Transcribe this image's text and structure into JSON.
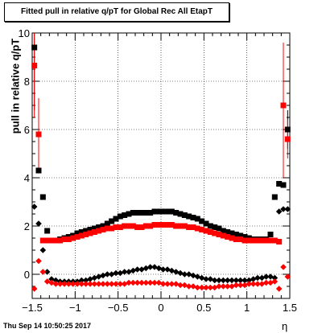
{
  "title": "Fitted pull in relative q/pT for Global Rec All EtapT",
  "footer": "Thu Sep 14 10:50:25 2017",
  "chart_data": {
    "type": "scatter",
    "xlabel": "η",
    "ylabel": "pull in relative q/pT",
    "xlim": [
      -1.5,
      1.5
    ],
    "ylim": [
      -1,
      10
    ],
    "grid": true,
    "xticks": [
      "−1.5",
      "−1",
      "−0.5",
      "0",
      "0.5",
      "1",
      "1.5"
    ],
    "yticks": [
      "0",
      "2",
      "4",
      "6",
      "8",
      "10"
    ],
    "series": [
      {
        "color": "#000000",
        "marker": "square",
        "points": [
          [
            -1.475,
            9.4
          ],
          [
            -1.425,
            4.3
          ],
          [
            -1.375,
            3.2
          ],
          [
            -1.325,
            1.8
          ],
          [
            -1.275,
            1.4
          ],
          [
            -1.225,
            1.4
          ],
          [
            -1.175,
            1.45
          ],
          [
            -1.125,
            1.5
          ],
          [
            -1.075,
            1.55
          ],
          [
            -1.025,
            1.6
          ],
          [
            -0.975,
            1.7
          ],
          [
            -0.925,
            1.75
          ],
          [
            -0.875,
            1.8
          ],
          [
            -0.825,
            1.85
          ],
          [
            -0.775,
            1.9
          ],
          [
            -0.725,
            1.95
          ],
          [
            -0.675,
            2.0
          ],
          [
            -0.625,
            2.1
          ],
          [
            -0.575,
            2.2
          ],
          [
            -0.525,
            2.3
          ],
          [
            -0.475,
            2.4
          ],
          [
            -0.425,
            2.45
          ],
          [
            -0.375,
            2.5
          ],
          [
            -0.325,
            2.55
          ],
          [
            -0.275,
            2.55
          ],
          [
            -0.225,
            2.55
          ],
          [
            -0.175,
            2.55
          ],
          [
            -0.125,
            2.55
          ],
          [
            -0.075,
            2.6
          ],
          [
            -0.025,
            2.6
          ],
          [
            0.025,
            2.6
          ],
          [
            0.075,
            2.6
          ],
          [
            0.125,
            2.6
          ],
          [
            0.175,
            2.55
          ],
          [
            0.225,
            2.5
          ],
          [
            0.275,
            2.45
          ],
          [
            0.325,
            2.4
          ],
          [
            0.375,
            2.35
          ],
          [
            0.425,
            2.3
          ],
          [
            0.475,
            2.2
          ],
          [
            0.525,
            2.1
          ],
          [
            0.575,
            2.0
          ],
          [
            0.625,
            1.95
          ],
          [
            0.675,
            1.9
          ],
          [
            0.725,
            1.8
          ],
          [
            0.775,
            1.75
          ],
          [
            0.825,
            1.7
          ],
          [
            0.875,
            1.65
          ],
          [
            0.925,
            1.6
          ],
          [
            0.975,
            1.55
          ],
          [
            1.025,
            1.5
          ],
          [
            1.075,
            1.45
          ],
          [
            1.125,
            1.45
          ],
          [
            1.175,
            1.45
          ],
          [
            1.225,
            1.45
          ],
          [
            1.275,
            1.65
          ],
          [
            1.325,
            3.2
          ],
          [
            1.375,
            3.75
          ],
          [
            1.425,
            3.7
          ],
          [
            1.475,
            6.0
          ]
        ]
      },
      {
        "color": "#ff0000",
        "marker": "square",
        "points": [
          [
            -1.475,
            8.65
          ],
          [
            -1.425,
            5.8
          ],
          [
            -1.375,
            1.4
          ],
          [
            -1.325,
            1.4
          ],
          [
            -1.275,
            1.4
          ],
          [
            -1.225,
            1.4
          ],
          [
            -1.175,
            1.4
          ],
          [
            -1.125,
            1.45
          ],
          [
            -1.075,
            1.45
          ],
          [
            -1.025,
            1.5
          ],
          [
            -0.975,
            1.55
          ],
          [
            -0.925,
            1.6
          ],
          [
            -0.875,
            1.65
          ],
          [
            -0.825,
            1.7
          ],
          [
            -0.775,
            1.75
          ],
          [
            -0.725,
            1.8
          ],
          [
            -0.675,
            1.85
          ],
          [
            -0.625,
            1.9
          ],
          [
            -0.575,
            1.9
          ],
          [
            -0.525,
            1.95
          ],
          [
            -0.475,
            1.95
          ],
          [
            -0.425,
            2.0
          ],
          [
            -0.375,
            2.0
          ],
          [
            -0.325,
            2.0
          ],
          [
            -0.275,
            1.95
          ],
          [
            -0.225,
            1.95
          ],
          [
            -0.175,
            2.0
          ],
          [
            -0.125,
            2.0
          ],
          [
            -0.075,
            2.05
          ],
          [
            -0.025,
            2.05
          ],
          [
            0.025,
            2.05
          ],
          [
            0.075,
            2.05
          ],
          [
            0.125,
            2.05
          ],
          [
            0.175,
            2.0
          ],
          [
            0.225,
            2.0
          ],
          [
            0.275,
            2.0
          ],
          [
            0.325,
            1.95
          ],
          [
            0.375,
            1.95
          ],
          [
            0.425,
            1.9
          ],
          [
            0.475,
            1.85
          ],
          [
            0.525,
            1.8
          ],
          [
            0.575,
            1.75
          ],
          [
            0.625,
            1.7
          ],
          [
            0.675,
            1.65
          ],
          [
            0.725,
            1.6
          ],
          [
            0.775,
            1.55
          ],
          [
            0.825,
            1.5
          ],
          [
            0.875,
            1.45
          ],
          [
            0.925,
            1.45
          ],
          [
            0.975,
            1.4
          ],
          [
            1.025,
            1.4
          ],
          [
            1.075,
            1.4
          ],
          [
            1.125,
            1.4
          ],
          [
            1.175,
            1.4
          ],
          [
            1.225,
            1.4
          ],
          [
            1.275,
            1.4
          ],
          [
            1.325,
            1.4
          ],
          [
            1.375,
            1.35
          ],
          [
            1.425,
            7.0
          ],
          [
            1.475,
            5.6
          ]
        ]
      },
      {
        "color": "#000000",
        "marker": "diamond",
        "points": [
          [
            -1.475,
            2.8
          ],
          [
            -1.425,
            2.1
          ],
          [
            -1.375,
            1.0
          ],
          [
            -1.325,
            0.1
          ],
          [
            -1.275,
            -0.2
          ],
          [
            -1.225,
            -0.25
          ],
          [
            -1.175,
            -0.3
          ],
          [
            -1.125,
            -0.3
          ],
          [
            -1.075,
            -0.3
          ],
          [
            -1.025,
            -0.3
          ],
          [
            -0.975,
            -0.3
          ],
          [
            -0.925,
            -0.25
          ],
          [
            -0.875,
            -0.25
          ],
          [
            -0.825,
            -0.2
          ],
          [
            -0.775,
            -0.15
          ],
          [
            -0.725,
            -0.1
          ],
          [
            -0.675,
            -0.05
          ],
          [
            -0.625,
            0.0
          ],
          [
            -0.575,
            0.0
          ],
          [
            -0.525,
            0.05
          ],
          [
            -0.475,
            0.05
          ],
          [
            -0.425,
            0.1
          ],
          [
            -0.375,
            0.1
          ],
          [
            -0.325,
            0.15
          ],
          [
            -0.275,
            0.2
          ],
          [
            -0.225,
            0.2
          ],
          [
            -0.175,
            0.25
          ],
          [
            -0.125,
            0.3
          ],
          [
            -0.075,
            0.3
          ],
          [
            -0.025,
            0.25
          ],
          [
            0.025,
            0.2
          ],
          [
            0.075,
            0.2
          ],
          [
            0.125,
            0.15
          ],
          [
            0.175,
            0.1
          ],
          [
            0.225,
            0.05
          ],
          [
            0.275,
            0.0
          ],
          [
            0.325,
            0.0
          ],
          [
            0.375,
            -0.05
          ],
          [
            0.425,
            -0.1
          ],
          [
            0.475,
            -0.15
          ],
          [
            0.525,
            -0.2
          ],
          [
            0.575,
            -0.2
          ],
          [
            0.625,
            -0.25
          ],
          [
            0.675,
            -0.25
          ],
          [
            0.725,
            -0.25
          ],
          [
            0.775,
            -0.25
          ],
          [
            0.825,
            -0.25
          ],
          [
            0.875,
            -0.25
          ],
          [
            0.925,
            -0.25
          ],
          [
            0.975,
            -0.25
          ],
          [
            1.025,
            -0.25
          ],
          [
            1.075,
            -0.2
          ],
          [
            1.125,
            -0.15
          ],
          [
            1.175,
            -0.15
          ],
          [
            1.225,
            -0.1
          ],
          [
            1.275,
            -0.1
          ],
          [
            1.325,
            -0.15
          ],
          [
            1.375,
            2.6
          ],
          [
            1.425,
            2.7
          ],
          [
            1.475,
            2.7
          ]
        ]
      },
      {
        "color": "#ff0000",
        "marker": "diamond",
        "points": [
          [
            -1.475,
            -0.6
          ],
          [
            -1.425,
            0.55
          ],
          [
            -1.375,
            0.1
          ],
          [
            -1.325,
            -0.3
          ],
          [
            -1.275,
            -0.35
          ],
          [
            -1.225,
            -0.4
          ],
          [
            -1.175,
            -0.4
          ],
          [
            -1.125,
            -0.4
          ],
          [
            -1.075,
            -0.4
          ],
          [
            -1.025,
            -0.4
          ],
          [
            -0.975,
            -0.4
          ],
          [
            -0.925,
            -0.4
          ],
          [
            -0.875,
            -0.4
          ],
          [
            -0.825,
            -0.4
          ],
          [
            -0.775,
            -0.4
          ],
          [
            -0.725,
            -0.4
          ],
          [
            -0.675,
            -0.4
          ],
          [
            -0.625,
            -0.4
          ],
          [
            -0.575,
            -0.4
          ],
          [
            -0.525,
            -0.4
          ],
          [
            -0.475,
            -0.4
          ],
          [
            -0.425,
            -0.4
          ],
          [
            -0.375,
            -0.35
          ],
          [
            -0.325,
            -0.35
          ],
          [
            -0.275,
            -0.35
          ],
          [
            -0.225,
            -0.35
          ],
          [
            -0.175,
            -0.35
          ],
          [
            -0.125,
            -0.35
          ],
          [
            -0.075,
            -0.35
          ],
          [
            -0.025,
            -0.35
          ],
          [
            0.025,
            -0.4
          ],
          [
            0.075,
            -0.4
          ],
          [
            0.125,
            -0.4
          ],
          [
            0.175,
            -0.4
          ],
          [
            0.225,
            -0.45
          ],
          [
            0.275,
            -0.45
          ],
          [
            0.325,
            -0.5
          ],
          [
            0.375,
            -0.5
          ],
          [
            0.425,
            -0.55
          ],
          [
            0.475,
            -0.55
          ],
          [
            0.525,
            -0.55
          ],
          [
            0.575,
            -0.55
          ],
          [
            0.625,
            -0.55
          ],
          [
            0.675,
            -0.5
          ],
          [
            0.725,
            -0.5
          ],
          [
            0.775,
            -0.5
          ],
          [
            0.825,
            -0.5
          ],
          [
            0.875,
            -0.45
          ],
          [
            0.925,
            -0.45
          ],
          [
            0.975,
            -0.45
          ],
          [
            1.025,
            -0.4
          ],
          [
            1.075,
            -0.4
          ],
          [
            1.125,
            -0.4
          ],
          [
            1.175,
            -0.4
          ],
          [
            1.225,
            -0.35
          ],
          [
            1.275,
            -0.35
          ],
          [
            1.325,
            -0.3
          ],
          [
            1.375,
            -0.6
          ],
          [
            1.425,
            0.3
          ],
          [
            1.475,
            -0.1
          ]
        ]
      }
    ],
    "error_bars": [
      {
        "color": "#000000",
        "x": -1.475,
        "lo": 6.8,
        "hi": 10.0
      },
      {
        "color": "#ff0000",
        "x": -1.475,
        "lo": 6.5,
        "hi": 10.0
      },
      {
        "color": "#ff0000",
        "x": -1.425,
        "lo": 4.2,
        "hi": 7.3
      },
      {
        "color": "#ff0000",
        "x": 1.425,
        "lo": 4.0,
        "hi": 9.6
      },
      {
        "color": "#000000",
        "x": 1.475,
        "lo": 5.2,
        "hi": 6.8
      },
      {
        "color": "#ff0000",
        "x": 1.475,
        "lo": 4.8,
        "hi": 6.4
      }
    ]
  }
}
